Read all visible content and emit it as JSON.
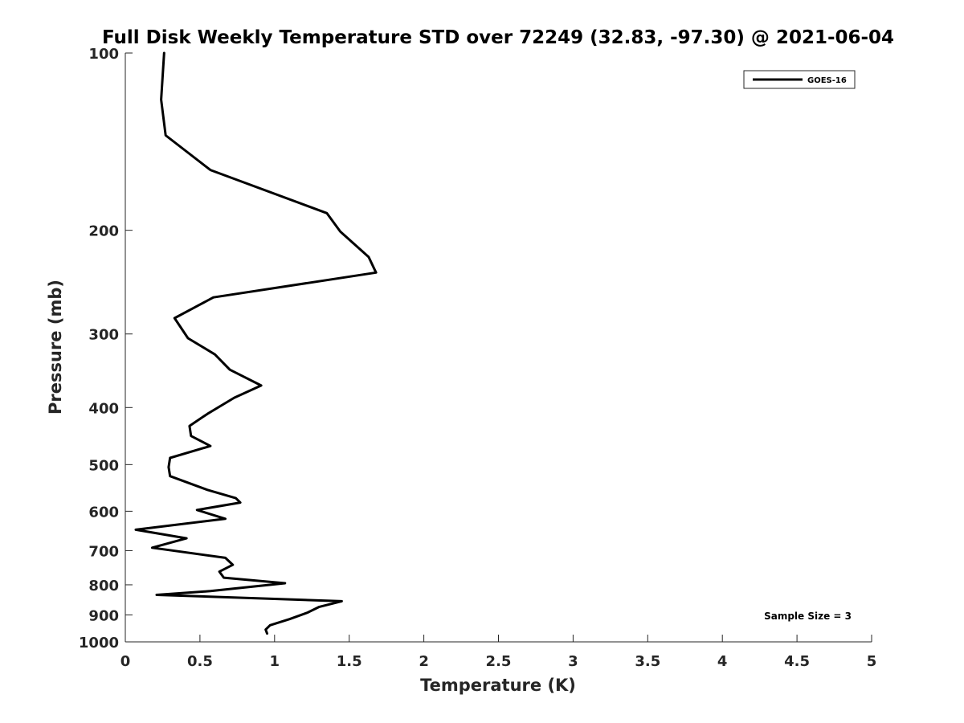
{
  "chart_data": {
    "type": "line",
    "title": "Full Disk Weekly Temperature STD over 72249 (32.83, -97.30) @ 2021-06-04",
    "xlabel": "Temperature (K)",
    "ylabel": "Pressure (mb)",
    "xlim": [
      0,
      5
    ],
    "ylim": [
      100,
      1000
    ],
    "y_scale": "log",
    "y_reversed": true,
    "grid": false,
    "legend_position": "top-right",
    "x_ticks": [
      0,
      0.5,
      1,
      1.5,
      2,
      2.5,
      3,
      3.5,
      4,
      4.5,
      5
    ],
    "x_tick_labels": [
      "0",
      "0.5",
      "1",
      "1.5",
      "2",
      "2.5",
      "3",
      "3.5",
      "4",
      "4.5",
      "5"
    ],
    "y_ticks": [
      100,
      200,
      300,
      400,
      500,
      600,
      700,
      800,
      900,
      1000
    ],
    "y_tick_labels": [
      "100",
      "200",
      "300",
      "400",
      "500",
      "600",
      "700",
      "800",
      "900",
      "1000"
    ],
    "series": [
      {
        "name": "GOES-16",
        "color": "#000000",
        "x": [
          0.26,
          0.24,
          0.27,
          0.57,
          1.35,
          1.44,
          1.63,
          1.68,
          0.59,
          0.33,
          0.42,
          0.6,
          0.7,
          0.91,
          0.73,
          0.55,
          0.43,
          0.44,
          0.57,
          0.3,
          0.29,
          0.3,
          0.55,
          0.74,
          0.77,
          0.48,
          0.67,
          0.07,
          0.41,
          0.18,
          0.67,
          0.72,
          0.63,
          0.66,
          1.07,
          0.57,
          0.21,
          1.45,
          1.3,
          1.22,
          1.1,
          0.97,
          0.94,
          0.95
        ],
        "y": [
          100,
          120,
          138,
          158,
          187,
          201,
          222,
          236,
          260,
          282,
          305,
          325,
          345,
          367,
          385,
          410,
          430,
          447,
          465,
          487,
          505,
          523,
          552,
          570,
          580,
          597,
          618,
          645,
          667,
          692,
          720,
          740,
          760,
          778,
          795,
          820,
          832,
          853,
          872,
          892,
          915,
          937,
          953,
          968
        ]
      }
    ],
    "annotations": [
      "Sample Size = 3"
    ]
  }
}
